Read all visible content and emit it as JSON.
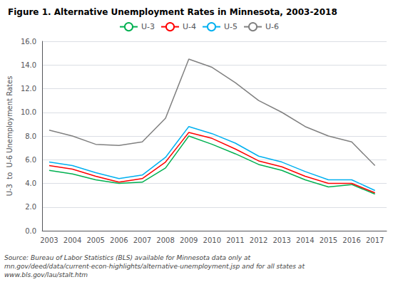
{
  "chart_data": {
    "type": "line",
    "title": "Figure 1. Alternative Unemployment Rates in Minnesota, 2003-2018",
    "ylabel": "U-3  to  U-6 Unemployment Rates",
    "annotation": "Source: Bureau of Labor Statistics (BLS) available for Minnesota data only at\nmn.gov/deed/data/current-econ-highlights/alternative-unemployment.jsp and for all states at\nwww.bls.gov/lau/stalt.htm",
    "x": [
      2003,
      2004,
      2005,
      2006,
      2007,
      2008,
      2009,
      2010,
      2011,
      2012,
      2013,
      2014,
      2015,
      2016,
      2017
    ],
    "series": [
      {
        "name": "U-3",
        "color": "#00b050",
        "values": [
          5.1,
          4.8,
          4.3,
          4.0,
          4.1,
          5.3,
          8.0,
          7.3,
          6.5,
          5.6,
          5.1,
          4.3,
          3.7,
          3.9,
          3.1
        ]
      },
      {
        "name": "U-4",
        "color": "#ff0000",
        "values": [
          5.5,
          5.2,
          4.6,
          4.1,
          4.4,
          5.8,
          8.3,
          7.8,
          6.9,
          5.9,
          5.4,
          4.6,
          4.0,
          4.0,
          3.2
        ]
      },
      {
        "name": "U-5",
        "color": "#00b0f0",
        "values": [
          5.8,
          5.5,
          4.9,
          4.4,
          4.7,
          6.2,
          8.8,
          8.2,
          7.4,
          6.3,
          5.8,
          5.0,
          4.3,
          4.3,
          3.4
        ]
      },
      {
        "name": "U-6",
        "color": "#808080",
        "values": [
          8.5,
          8.0,
          7.3,
          7.2,
          7.5,
          9.5,
          14.5,
          13.8,
          12.5,
          11.0,
          10.0,
          8.8,
          8.0,
          7.5,
          5.5
        ]
      }
    ],
    "xlim": [
      2002.7,
      2017.5
    ],
    "xticks": [
      2003,
      2004,
      2005,
      2006,
      2007,
      2008,
      2009,
      2010,
      2011,
      2012,
      2013,
      2014,
      2015,
      2016,
      2017
    ],
    "ylim": [
      0.0,
      16.0
    ],
    "yticks": [
      {
        "value": 0,
        "label": "0.0"
      },
      {
        "value": 2,
        "label": "2.0"
      },
      {
        "value": 4,
        "label": "4.0"
      },
      {
        "value": 6,
        "label": "6.0"
      },
      {
        "value": 8,
        "label": "8.0"
      },
      {
        "value": 10,
        "label": "10.0"
      },
      {
        "value": 12,
        "label": "12.0"
      },
      {
        "value": 14,
        "label": "14.0"
      },
      {
        "value": 16,
        "label": "16.0"
      }
    ],
    "grid": true,
    "legend": "top"
  }
}
